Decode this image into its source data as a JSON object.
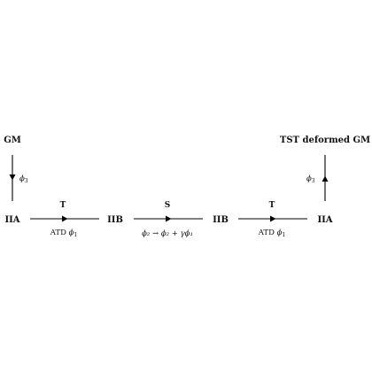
{
  "nodes": {
    "gm": "GM",
    "iia_left": "IIA",
    "iib_1": "IIB",
    "iib_2": "IIB",
    "iia_right": "IIA",
    "tst": "TST deformed GM"
  },
  "edges": {
    "gm_to_iia": {
      "phi": "ϕ",
      "sub": "3"
    },
    "t1": {
      "top": "T",
      "bottom_text": "ATD ",
      "phi": "ϕ",
      "sub": "1"
    },
    "s": {
      "top": "S",
      "bottom_text": "ϕ₂ → ϕ₂ + γϕ₁"
    },
    "t2": {
      "top": "T",
      "bottom_text": "ATD ",
      "phi": "ϕ",
      "sub": "1"
    },
    "iia_to_tst": {
      "phi": "ϕ",
      "sub": "3"
    }
  }
}
